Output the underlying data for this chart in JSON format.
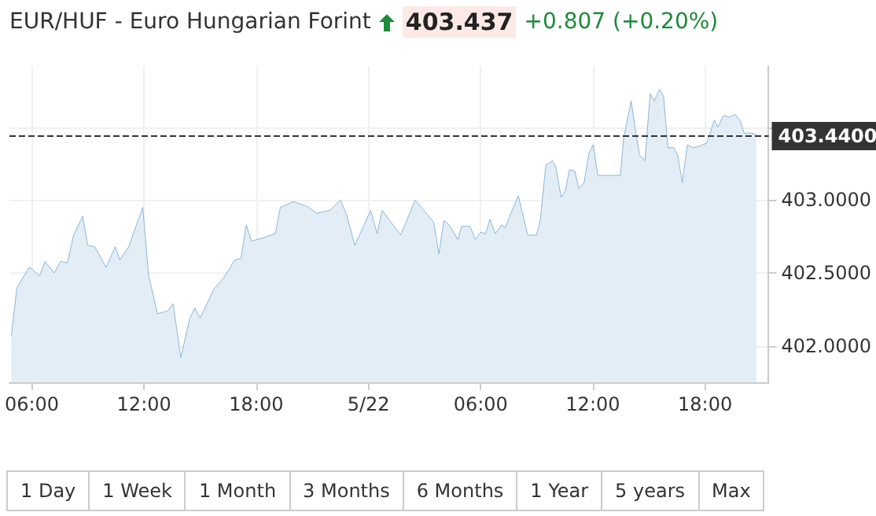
{
  "chart_data": {
    "type": "area",
    "title": "EUR/HUF - Euro Hungarian Forint",
    "subtitle": "403.437",
    "annotations": [
      "+0.807 (+0.20%)",
      "1 Day",
      "1 Week",
      "1 Month",
      "3 Months",
      "6 Months",
      "1 Year",
      "5 years",
      "Max"
    ],
    "x": [
      "--05-21T04:54",
      "--05-21T05:12",
      "--05-21T05:52",
      "--05-21T06:25",
      "--05-21T06:42",
      "--05-21T07:12",
      "--05-21T07:32",
      "--05-21T07:54",
      "--05-21T08:14",
      "--05-21T08:43",
      "--05-21T08:59",
      "--05-21T09:22",
      "--05-21T09:58",
      "--05-21T10:28",
      "--05-21T10:42",
      "--05-21T11:11",
      "--05-21T11:32",
      "--05-21T11:56",
      "--05-21T12:14",
      "--05-21T12:43",
      "--05-21T13:16",
      "--05-21T13:33",
      "--05-21T13:58",
      "--05-21T14:27",
      "--05-21T14:43",
      "--05-21T15:00",
      "--05-21T15:44",
      "--05-21T16:17",
      "--05-21T16:51",
      "--05-21T17:11",
      "--05-21T17:28",
      "--05-21T17:45",
      "--05-21T18:19",
      "--05-21T19:01",
      "--05-21T19:17",
      "--05-21T19:59",
      "--05-21T20:41",
      "--05-21T21:15",
      "--05-21T21:56",
      "--05-21T22:30",
      "--05-21T22:50",
      "--05-21T23:16",
      "--05-22T00:07",
      "--05-22T00:28",
      "--05-22T00:44",
      "--05-22T01:43",
      "--05-22T02:30",
      "--05-22T03:29",
      "--05-22T03:46",
      "--05-22T04:02",
      "--05-22T04:19",
      "--05-22T04:47",
      "--05-22T04:59",
      "--05-22T05:26",
      "--05-22T05:43",
      "--05-22T06:00",
      "--05-22T06:16",
      "--05-22T06:30",
      "--05-22T06:47",
      "--05-22T07:07",
      "--05-22T07:19",
      "--05-22T07:35",
      "--05-22T08:01",
      "--05-22T08:31",
      "--05-22T08:59",
      "--05-22T09:11",
      "--05-22T09:29",
      "--05-22T09:50",
      "--05-22T10:01",
      "--05-22T10:18",
      "--05-22T10:31",
      "--05-22T10:45",
      "--05-22T11:02",
      "--05-22T11:15",
      "--05-22T11:32",
      "--05-22T11:47",
      "--05-22T12:01",
      "--05-22T12:16",
      "--05-22T13:28",
      "--05-22T13:39",
      "--05-22T14:03",
      "--05-22T14:18",
      "--05-22T14:30",
      "--05-22T14:47",
      "--05-22T15:04",
      "--05-22T15:17",
      "--05-22T15:34",
      "--05-22T15:47",
      "--05-22T16:01",
      "--05-22T16:19",
      "--05-22T16:32",
      "--05-22T16:47",
      "--05-22T17:03",
      "--05-22T17:23",
      "--05-22T17:40",
      "--05-22T18:05",
      "--05-22T18:30",
      "--05-22T18:41",
      "--05-22T18:59",
      "--05-22T19:20",
      "--05-22T19:37",
      "--05-22T19:54",
      "--05-22T20:05",
      "--05-22T20:28",
      "--05-22T20:44"
    ],
    "series": [
      {
        "color": "#7eb0d5",
        "values": [
          402.07,
          402.4,
          402.54,
          402.48,
          402.58,
          402.5,
          402.58,
          402.57,
          402.76,
          402.89,
          402.69,
          402.68,
          402.54,
          402.68,
          402.59,
          402.68,
          402.81,
          402.95,
          402.49,
          402.22,
          402.24,
          402.29,
          401.92,
          402.19,
          402.26,
          402.19,
          402.39,
          402.47,
          402.59,
          402.6,
          402.83,
          402.72,
          402.74,
          402.77,
          402.95,
          402.99,
          402.96,
          402.91,
          402.93,
          403.0,
          402.9,
          402.69,
          402.93,
          402.77,
          402.93,
          402.76,
          403.0,
          402.85,
          402.63,
          402.86,
          402.83,
          402.73,
          402.82,
          402.82,
          402.73,
          402.78,
          402.77,
          402.87,
          402.77,
          402.83,
          402.81,
          402.9,
          403.03,
          402.76,
          402.76,
          402.86,
          403.24,
          403.27,
          403.23,
          403.02,
          403.06,
          403.21,
          403.2,
          403.08,
          403.12,
          403.32,
          403.38,
          403.17,
          403.17,
          403.43,
          403.68,
          403.46,
          403.31,
          403.27,
          403.73,
          403.68,
          403.76,
          403.71,
          403.36,
          403.36,
          403.31,
          403.12,
          403.38,
          403.36,
          403.37,
          403.39,
          403.55,
          403.5,
          403.58,
          403.57,
          403.59,
          403.54,
          403.46,
          403.46,
          403.45
        ]
      }
    ],
    "xlim": [
      "--05-21T04:48",
      "--05-22T21:24"
    ],
    "xticks": [
      {
        "value": "--05-21T06:00",
        "label": "06:00"
      },
      {
        "value": "--05-21T12:00",
        "label": "12:00"
      },
      {
        "value": "--05-21T18:00",
        "label": "18:00"
      },
      {
        "value": "--05-22T00:00",
        "label": "5/22"
      },
      {
        "value": "--05-22T06:00",
        "label": "06:00"
      },
      {
        "value": "--05-22T12:00",
        "label": "12:00"
      },
      {
        "value": "--05-22T18:00",
        "label": "18:00"
      }
    ],
    "ylim": [
      401.75,
      403.92
    ],
    "yticks": [
      {
        "value": 402,
        "label": "402.0000"
      },
      {
        "value": 402.5,
        "label": "402.5000"
      },
      {
        "value": 403,
        "label": "403.0000"
      },
      {
        "value": 403.5,
        "label": null
      }
    ],
    "ref_lines": [
      {
        "axis": "y",
        "value": 403.44,
        "label": "403.4400",
        "color": "#333333",
        "line_style": "dashed"
      }
    ],
    "grid": true,
    "marker": "none",
    "line_style": "solid"
  }
}
